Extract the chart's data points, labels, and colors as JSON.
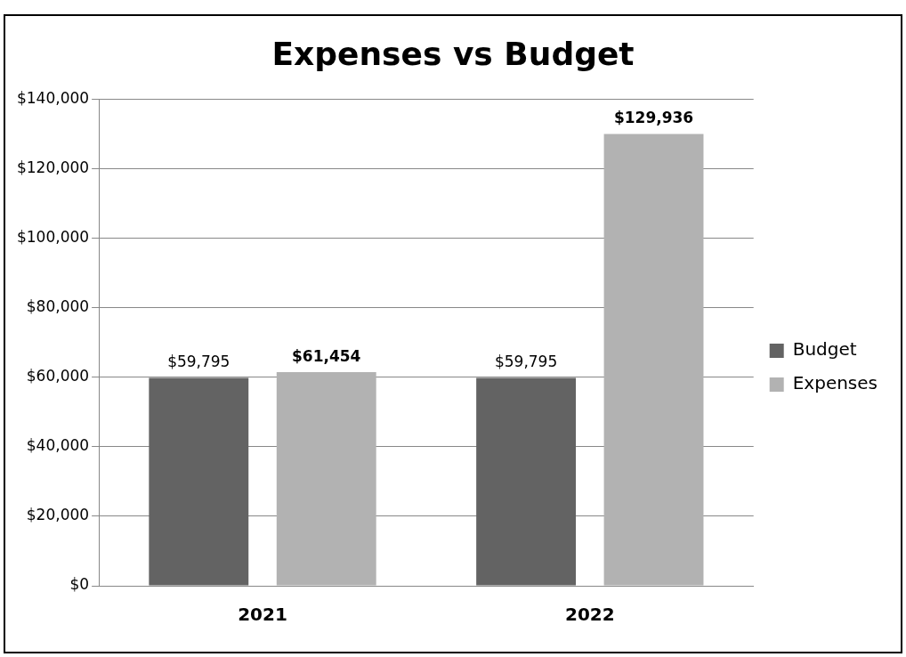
{
  "chart_data": {
    "type": "bar",
    "title": "Expenses vs Budget",
    "categories": [
      "2021",
      "2022"
    ],
    "series": [
      {
        "name": "Budget",
        "color": "#636363",
        "values": [
          59795,
          59795
        ],
        "value_labels": [
          "$59,795",
          "$59,795"
        ]
      },
      {
        "name": "Expenses",
        "color": "#b2b2b2",
        "values": [
          61454,
          129936
        ],
        "value_labels": [
          "$61,454",
          "$129,936"
        ]
      }
    ],
    "ylim": [
      0,
      140000
    ],
    "yticks": [
      {
        "value": 0,
        "label": "$0"
      },
      {
        "value": 20000,
        "label": "$20,000"
      },
      {
        "value": 40000,
        "label": "$40,000"
      },
      {
        "value": 60000,
        "label": "$60,000"
      },
      {
        "value": 80000,
        "label": "$80,000"
      },
      {
        "value": 100000,
        "label": "$100,000"
      },
      {
        "value": 120000,
        "label": "$120,000"
      },
      {
        "value": 140000,
        "label": "$140,000"
      }
    ],
    "grid": "y",
    "legend": "right"
  }
}
